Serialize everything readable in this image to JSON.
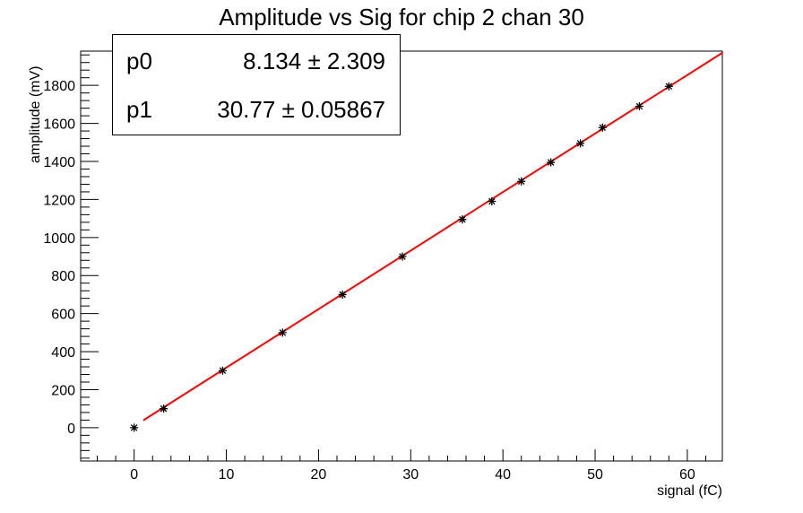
{
  "chart_data": {
    "type": "scatter",
    "title": "Amplitude vs Sig for chip 2 chan 30",
    "xlabel": "signal (fC)",
    "ylabel": "amplitude (mV)",
    "xlim": [
      -5.8,
      63.8
    ],
    "ylim": [
      -175,
      1980
    ],
    "x_ticks": [
      0,
      10,
      20,
      30,
      40,
      50,
      60
    ],
    "y_ticks": [
      0,
      200,
      400,
      600,
      800,
      1000,
      1200,
      1400,
      1600,
      1800
    ],
    "grid": false,
    "points": [
      {
        "x": 0.0,
        "y": 0
      },
      {
        "x": 3.2,
        "y": 100
      },
      {
        "x": 9.6,
        "y": 300
      },
      {
        "x": 16.1,
        "y": 500
      },
      {
        "x": 22.6,
        "y": 700
      },
      {
        "x": 29.1,
        "y": 900
      },
      {
        "x": 35.6,
        "y": 1095
      },
      {
        "x": 38.8,
        "y": 1190
      },
      {
        "x": 42.0,
        "y": 1295
      },
      {
        "x": 45.2,
        "y": 1395
      },
      {
        "x": 48.4,
        "y": 1495
      },
      {
        "x": 50.8,
        "y": 1578
      },
      {
        "x": 54.8,
        "y": 1690
      },
      {
        "x": 58.0,
        "y": 1795
      }
    ],
    "fit": {
      "x_range": [
        1.0,
        63.8
      ],
      "p0": 8.134,
      "p1": 30.77,
      "color": "#ff0000"
    },
    "stats_box": {
      "rows": [
        {
          "name": "p0",
          "value": "8.134 ± 2.309"
        },
        {
          "name": "p1",
          "value": "30.77 ± 0.05867"
        }
      ]
    }
  }
}
